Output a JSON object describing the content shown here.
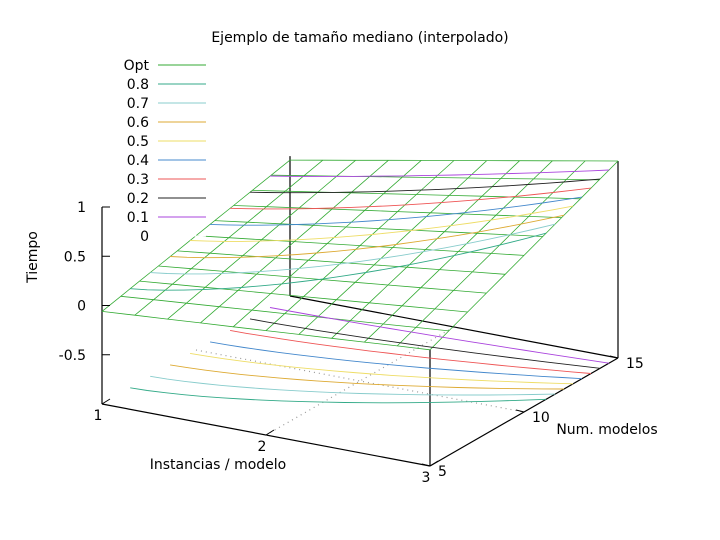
{
  "chart_data": {
    "type": "surface",
    "title": "Ejemplo de tamaño mediano (interpolado)",
    "xlabel": "Instancias / modelo",
    "ylabel": "Num. modelos",
    "zlabel": "Tiempo",
    "xlim": [
      1,
      3
    ],
    "ylim": [
      5,
      15
    ],
    "zlim": [
      -1,
      1
    ],
    "xticks": [
      "1",
      "2",
      "3"
    ],
    "yticks": [
      "5",
      "10",
      "15"
    ],
    "zticks": [
      "-0.5",
      "0",
      "0.5",
      "1"
    ],
    "surface_color": "#33aa33",
    "surface_z_corners": {
      "x1_y5": -0.06,
      "x3_y5": 0.18,
      "x1_y15": 0.38,
      "x3_y15": 1.0
    },
    "contour_series": [
      {
        "name": "Opt",
        "color": "#33aa33"
      },
      {
        "name": "0.8",
        "color": "#33aa88"
      },
      {
        "name": "0.7",
        "color": "#88cccc"
      },
      {
        "name": "0.6",
        "color": "#ddaa33"
      },
      {
        "name": "0.5",
        "color": "#eedd66"
      },
      {
        "name": "0.4",
        "color": "#4488cc"
      },
      {
        "name": "0.3",
        "color": "#ee5555"
      },
      {
        "name": "0.2",
        "color": "#222222"
      },
      {
        "name": "0.1",
        "color": "#aa44dd"
      },
      {
        "name": "0",
        "color": "#ffffff"
      }
    ],
    "legend_position": "top-left",
    "grid": "none"
  }
}
